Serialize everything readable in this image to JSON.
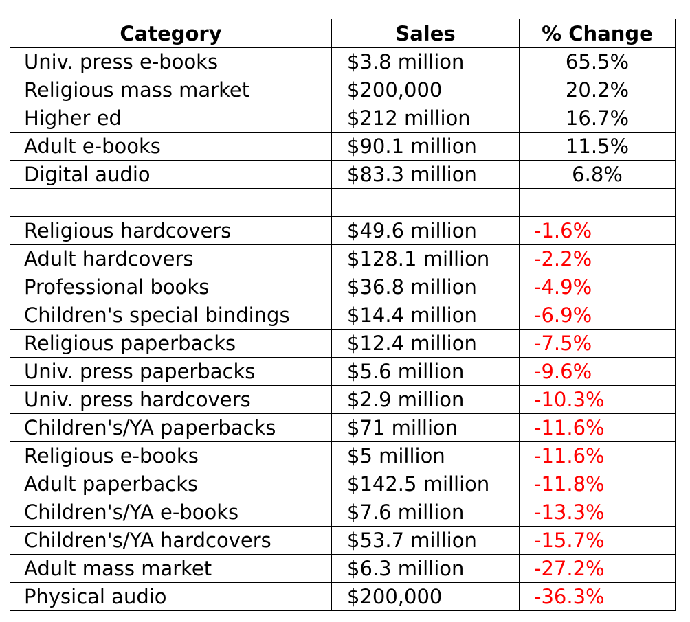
{
  "table": {
    "headers": [
      "Category",
      "Sales",
      "% Change"
    ],
    "rows": [
      {
        "category": "Univ. press e-books",
        "sales": "$3.8 million",
        "change": "65.5%",
        "negative": false
      },
      {
        "category": "Religious mass market",
        "sales": "$200,000",
        "change": "20.2%",
        "negative": false
      },
      {
        "category": "Higher ed",
        "sales": "$212 million",
        "change": "16.7%",
        "negative": false
      },
      {
        "category": "Adult e-books",
        "sales": "$90.1 million",
        "change": "11.5%",
        "negative": false
      },
      {
        "category": "Digital audio",
        "sales": "$83.3 million",
        "change": "6.8%",
        "negative": false
      },
      {
        "category": "",
        "sales": "",
        "change": "",
        "negative": false
      },
      {
        "category": "Religious hardcovers",
        "sales": "$49.6 million",
        "change": "-1.6%",
        "negative": true
      },
      {
        "category": "Adult hardcovers",
        "sales": "$128.1 million",
        "change": "-2.2%",
        "negative": true
      },
      {
        "category": "Professional books",
        "sales": "$36.8 million",
        "change": "-4.9%",
        "negative": true
      },
      {
        "category": "Children's special bindings",
        "sales": "$14.4 million",
        "change": "-6.9%",
        "negative": true
      },
      {
        "category": "Religious paperbacks",
        "sales": "$12.4 million",
        "change": "-7.5%",
        "negative": true
      },
      {
        "category": "Univ. press paperbacks",
        "sales": "$5.6 million",
        "change": "-9.6%",
        "negative": true
      },
      {
        "category": "Univ. press hardcovers",
        "sales": "$2.9 million",
        "change": "-10.3%",
        "negative": true
      },
      {
        "category": "Children's/YA paperbacks",
        "sales": "$71 million",
        "change": "-11.6%",
        "negative": true
      },
      {
        "category": "Religious e-books",
        "sales": "$5 million",
        "change": "-11.6%",
        "negative": true
      },
      {
        "category": "Adult paperbacks",
        "sales": "$142.5 million",
        "change": "-11.8%",
        "negative": true
      },
      {
        "category": "Children's/YA e-books",
        "sales": "$7.6 million",
        "change": "-13.3%",
        "negative": true
      },
      {
        "category": "Children's/YA hardcovers",
        "sales": "$53.7 million",
        "change": "-15.7%",
        "negative": true
      },
      {
        "category": "Adult mass market",
        "sales": "$6.3 million",
        "change": "-27.2%",
        "negative": true
      },
      {
        "category": "Physical audio",
        "sales": "$200,000",
        "change": "-36.3%",
        "negative": true
      }
    ]
  },
  "colors": {
    "negative": "#ff0000",
    "text": "#000000",
    "border": "#000000"
  },
  "chart_data": {
    "type": "table",
    "columns": [
      "Category",
      "Sales",
      "% Change"
    ],
    "rows": [
      [
        "Univ. press e-books",
        "$3.8 million",
        "65.5%"
      ],
      [
        "Religious mass market",
        "$200,000",
        "20.2%"
      ],
      [
        "Higher ed",
        "$212 million",
        "16.7%"
      ],
      [
        "Adult e-books",
        "$90.1 million",
        "11.5%"
      ],
      [
        "Digital audio",
        "$83.3 million",
        "6.8%"
      ],
      [
        "",
        "",
        ""
      ],
      [
        "Religious hardcovers",
        "$49.6 million",
        "-1.6%"
      ],
      [
        "Adult hardcovers",
        "$128.1 million",
        "-2.2%"
      ],
      [
        "Professional books",
        "$36.8 million",
        "-4.9%"
      ],
      [
        "Children's special bindings",
        "$14.4 million",
        "-6.9%"
      ],
      [
        "Religious paperbacks",
        "$12.4 million",
        "-7.5%"
      ],
      [
        "Univ. press paperbacks",
        "$5.6 million",
        "-9.6%"
      ],
      [
        "Univ. press hardcovers",
        "$2.9 million",
        "-10.3%"
      ],
      [
        "Children's/YA paperbacks",
        "$71 million",
        "-11.6%"
      ],
      [
        "Religious e-books",
        "$5 million",
        "-11.6%"
      ],
      [
        "Adult paperbacks",
        "$142.5 million",
        "-11.8%"
      ],
      [
        "Children's/YA e-books",
        "$7.6 million",
        "-13.3%"
      ],
      [
        "Children's/YA hardcovers",
        "$53.7 million",
        "-15.7%"
      ],
      [
        "Adult mass market",
        "$6.3 million",
        "-27.2%"
      ],
      [
        "Physical audio",
        "$200,000",
        "-36.3%"
      ]
    ]
  }
}
